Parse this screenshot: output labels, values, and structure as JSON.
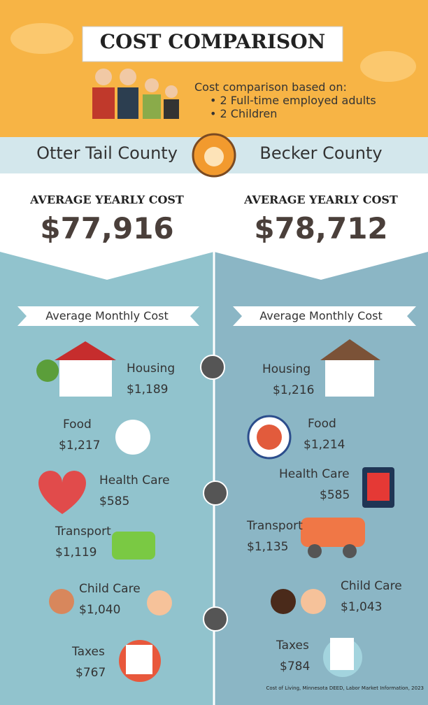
{
  "header": {
    "title": "COST COMPARISON",
    "basis": "Cost comparison based on:",
    "bullets": [
      "2 Full-time employed adults",
      "2 Children"
    ]
  },
  "counties": [
    {
      "name": "Otter Tail County",
      "yearly_label": "AVERAGE YEARLY COST",
      "yearly_cost": "$77,916",
      "monthly_label": "Average Monthly Cost",
      "items": [
        {
          "label": "Housing",
          "value": "$1,189"
        },
        {
          "label": "Food",
          "value": "$1,217"
        },
        {
          "label": "Health Care",
          "value": "$585"
        },
        {
          "label": "Transport",
          "value": "$1,119"
        },
        {
          "label": "Child Care",
          "value": "$1,040"
        },
        {
          "label": "Taxes",
          "value": "$767"
        }
      ]
    },
    {
      "name": "Becker County",
      "yearly_label": "AVERAGE YEARLY COST",
      "yearly_cost": "$78,712",
      "monthly_label": "Average Monthly Cost",
      "items": [
        {
          "label": "Housing",
          "value": "$1,216"
        },
        {
          "label": "Food",
          "value": "$1,214"
        },
        {
          "label": "Health Care",
          "value": "$585"
        },
        {
          "label": "Transport",
          "value": "$1,135"
        },
        {
          "label": "Child Care",
          "value": "$1,043"
        },
        {
          "label": "Taxes",
          "value": "$784"
        }
      ]
    }
  ],
  "footer": {
    "source": "Cost of Living, Minnesota DEED, Labor Market Information, 2023"
  }
}
